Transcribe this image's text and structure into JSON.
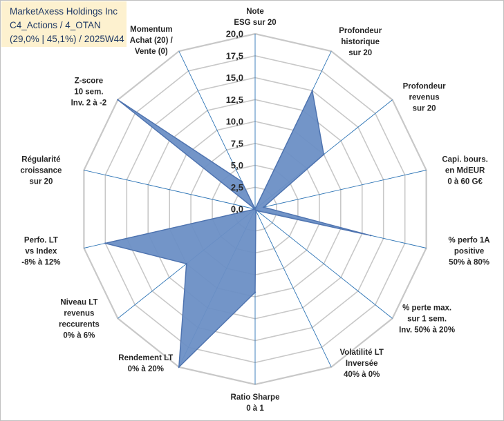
{
  "title": {
    "line1": "MarketAxess Holdings Inc",
    "line2": "C4_Actions / 4_OTAN",
    "line3": "(29,0% | 45,1%) / 2025W44"
  },
  "chart_data": {
    "type": "radar",
    "title": "MarketAxess Holdings Inc",
    "rlim": [
      0,
      20
    ],
    "tick_step": 2.5,
    "tick_labels": [
      "0,0",
      "2,5",
      "5,0",
      "7,5",
      "10,0",
      "12,5",
      "15,0",
      "17,5",
      "20,0"
    ],
    "axes": [
      "Note\nESG sur 20",
      "Profondeur\nhistorique\nsur 20",
      "Profondeur\nrevenus\nsur 20",
      "Capi. bours.\nen MdEUR\n0 à 60 G€",
      "% perfo 1A\npositive\n50% à 80%",
      "% perte max.\nsur 1 sem.\nInv. 50% à 20%",
      "Volatilité LT\nInversée\n40% à 0%",
      "Ratio Sharpe\n0 à 1",
      "Rendement LT\n0% à 20%",
      "Niveau LT\nrevenus\nreccurents\n0% à 6%",
      "Perfo. LT\nvs Index\n-8% à 12%",
      "Régularité\ncroissance\nsur 20",
      "Z-score\n10 sem.\nInv. 2 à -2",
      "Momentum\nAchat (20) /\nVente (0)"
    ],
    "series": [
      {
        "name": "MarketAxess Holdings Inc",
        "values": [
          0,
          15,
          10,
          1,
          13.5,
          0.3,
          0.2,
          9.5,
          20,
          10,
          17.5,
          0,
          20,
          3.5
        ]
      }
    ],
    "colors": {
      "fill": "#6b8fc5",
      "stroke": "#4f74b0",
      "grid": "#c8c8c8",
      "spoke": "#2e75b6"
    }
  }
}
